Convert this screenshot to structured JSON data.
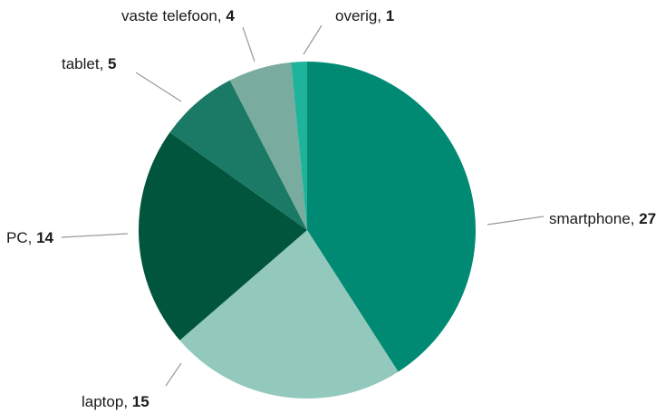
{
  "chart_data": {
    "type": "pie",
    "title": "",
    "slices": [
      {
        "label": "smartphone",
        "value": 27,
        "color": "#008a74"
      },
      {
        "label": "laptop",
        "value": 15,
        "color": "#93c8bd"
      },
      {
        "label": "PC",
        "value": 14,
        "color": "#00553c"
      },
      {
        "label": "tablet",
        "value": 5,
        "color": "#1b7a66"
      },
      {
        "label": "vaste telefoon",
        "value": 4,
        "color": "#79ac9e"
      },
      {
        "label": "overig",
        "value": 1,
        "color": "#1eb39b"
      }
    ],
    "start_angle_deg": 0,
    "direction": "clockwise",
    "label_separator": ", ",
    "legend": "none"
  }
}
